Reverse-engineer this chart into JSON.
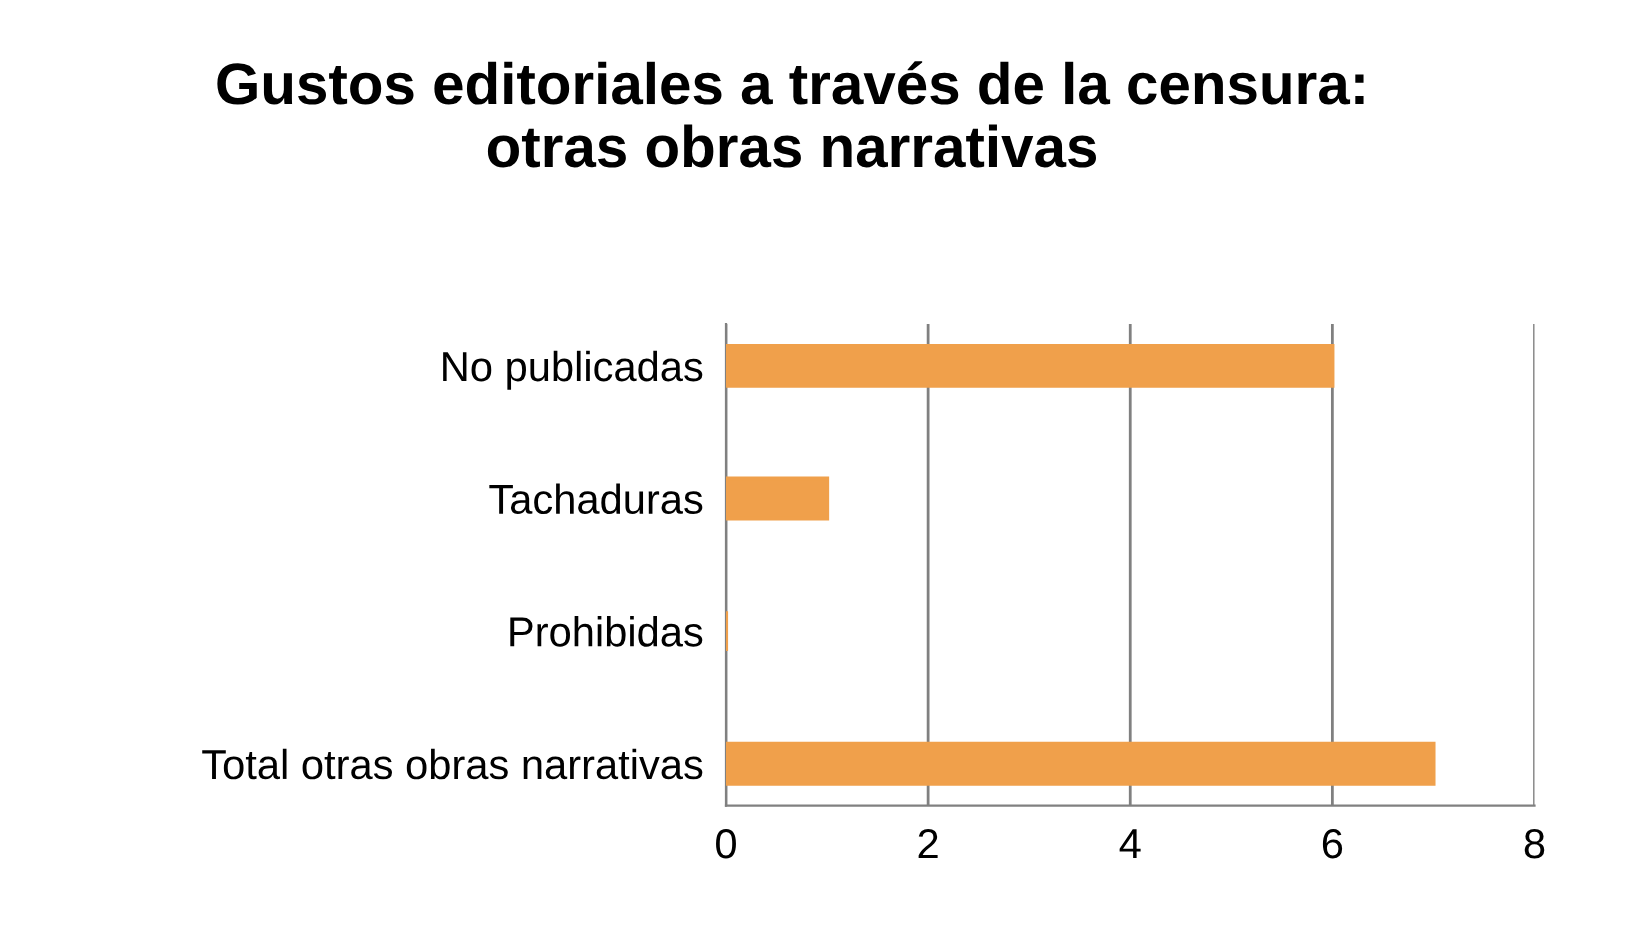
{
  "chart_data": {
    "type": "bar",
    "orientation": "horizontal",
    "title": "Gustos editoriales a través de la censura:\notras obras narrativas",
    "categories": [
      "No publicadas",
      "Tachaduras",
      "Prohibidas",
      "Total otras obras narrativas"
    ],
    "values": [
      6,
      1,
      0,
      7
    ],
    "color": "#f0a04b",
    "xlim": [
      0,
      8
    ],
    "xticks": [
      0,
      2,
      4,
      6,
      8
    ],
    "grid": "x",
    "legend": false
  }
}
